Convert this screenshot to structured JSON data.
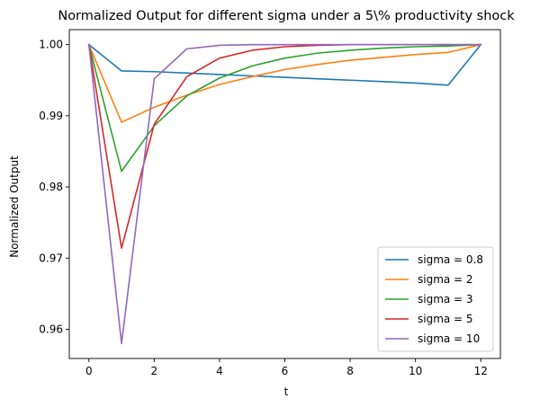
{
  "chart_data": {
    "type": "line",
    "title": "Normalized Output for different sigma under a 5\\% productivity shock",
    "xlabel": "t",
    "ylabel": "Normalized Output",
    "xlim": [
      -0.6,
      12.6
    ],
    "ylim": [
      0.9559,
      1.0021
    ],
    "xticks": [
      0,
      2,
      4,
      6,
      8,
      10,
      12
    ],
    "xtick_labels": [
      "0",
      "2",
      "4",
      "6",
      "8",
      "10",
      "12"
    ],
    "yticks": [
      0.96,
      0.97,
      0.98,
      0.99,
      1.0
    ],
    "ytick_labels": [
      "0.96",
      "0.97",
      "0.98",
      "0.99",
      "1.00"
    ],
    "grid": false,
    "legend_position": "lower-right",
    "x": [
      0,
      1,
      2,
      3,
      4,
      5,
      6,
      7,
      8,
      9,
      10,
      11,
      12
    ],
    "series": [
      {
        "name": "sigma = 0.8",
        "color": "#1f77b4",
        "values": [
          1.0,
          0.9963,
          0.9962,
          0.996,
          0.9958,
          0.9956,
          0.9954,
          0.9952,
          0.995,
          0.9948,
          0.9946,
          0.9943,
          1.0
        ]
      },
      {
        "name": "sigma = 2",
        "color": "#ff7f0e",
        "values": [
          1.0,
          0.9891,
          0.9912,
          0.9929,
          0.9944,
          0.9955,
          0.9965,
          0.9972,
          0.9978,
          0.9982,
          0.9986,
          0.9989,
          1.0
        ]
      },
      {
        "name": "sigma = 3",
        "color": "#2ca02c",
        "values": [
          1.0,
          0.9822,
          0.9886,
          0.9928,
          0.9953,
          0.997,
          0.9981,
          0.9988,
          0.9992,
          0.9995,
          0.9997,
          0.9998,
          1.0
        ]
      },
      {
        "name": "sigma = 5",
        "color": "#d62728",
        "values": [
          1.0,
          0.9714,
          0.9888,
          0.9955,
          0.9981,
          0.9992,
          0.9997,
          0.9999,
          1.0,
          1.0,
          1.0,
          1.0,
          1.0
        ]
      },
      {
        "name": "sigma = 10",
        "color": "#9467bd",
        "values": [
          1.0,
          0.958,
          0.9952,
          0.9994,
          0.9999,
          1.0,
          1.0,
          1.0,
          1.0,
          1.0,
          1.0,
          1.0,
          1.0
        ]
      }
    ]
  }
}
